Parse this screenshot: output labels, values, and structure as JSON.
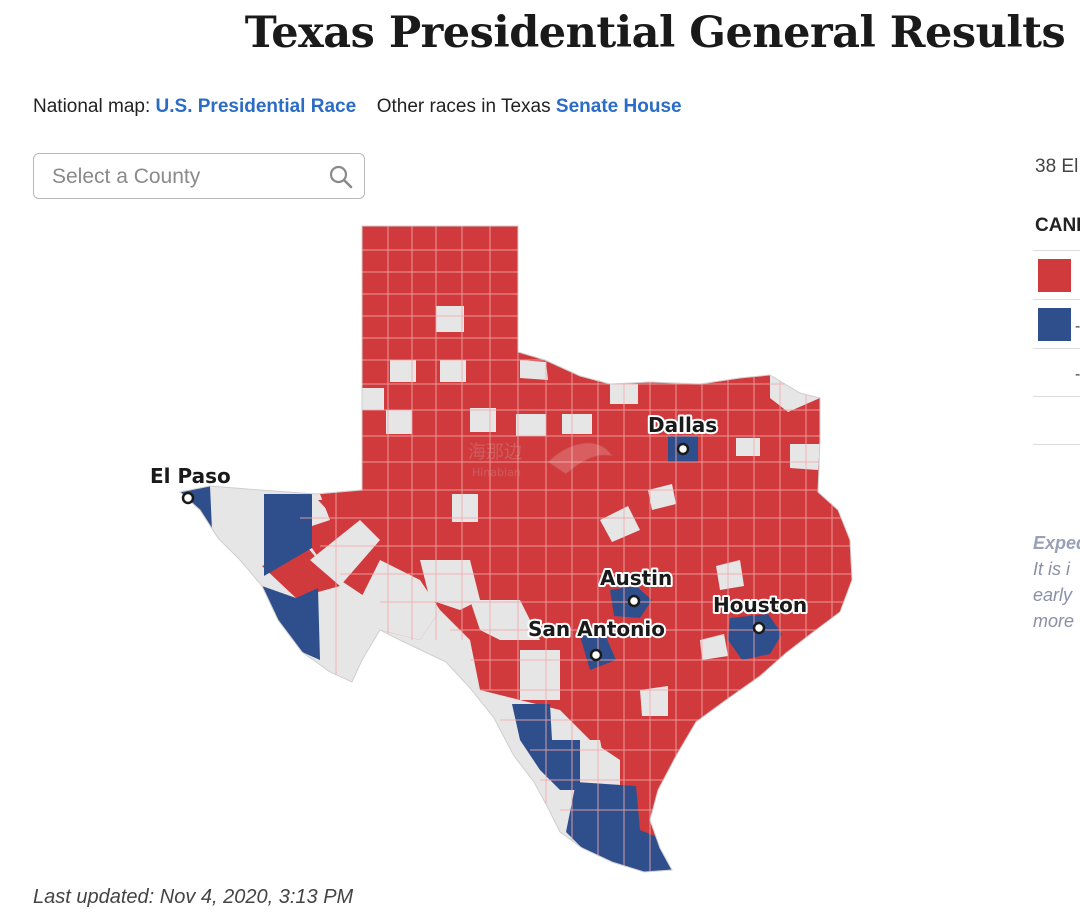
{
  "header": {
    "title": "Texas Presidential General Results"
  },
  "nav": {
    "national_prefix": "National map:",
    "national_link": "U.S. Presidential Race",
    "other_prefix": "Other races in Texas",
    "senate_link": "Senate",
    "house_link": "House"
  },
  "search": {
    "placeholder": "Select a County",
    "icon": "search-icon"
  },
  "map": {
    "region": "Texas counties",
    "cities": [
      {
        "name": "El Paso"
      },
      {
        "name": "Dallas"
      },
      {
        "name": "Austin"
      },
      {
        "name": "Houston"
      },
      {
        "name": "San Antonio"
      }
    ],
    "colors": {
      "republican": "#d13a3d",
      "democrat": "#2f4f8c",
      "no_result": "#e6e6e6",
      "county_border": "#f2a8a8"
    }
  },
  "sidebar": {
    "electoral_votes": "38 El",
    "candidates_header": "CAND",
    "rows": [
      {
        "color": "#d13a3d",
        "text": ""
      },
      {
        "color": "#2f4f8c",
        "text": "-"
      },
      {
        "color": "",
        "text": "-"
      }
    ],
    "note_lines": [
      "Exped",
      "It is i",
      "early",
      "more"
    ]
  },
  "footer": {
    "last_updated": "Last updated: Nov 4, 2020, 3:13 PM"
  }
}
